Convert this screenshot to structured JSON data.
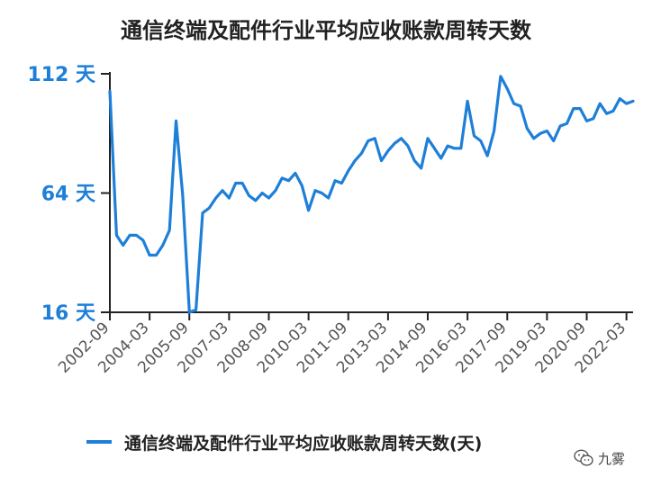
{
  "chart_data": {
    "type": "line",
    "title": "通信终端及配件行业平均应收账款周转天数",
    "xlabel": "",
    "ylabel": "",
    "ylim": [
      16,
      112
    ],
    "yticks": [
      {
        "value": 16,
        "label": "16 天"
      },
      {
        "value": 64,
        "label": "64 天"
      },
      {
        "value": 112,
        "label": "112 天"
      }
    ],
    "xtick_labels": [
      "2002-09",
      "2004-03",
      "2005-09",
      "2007-03",
      "2008-09",
      "2010-03",
      "2011-09",
      "2013-03",
      "2014-09",
      "2016-03",
      "2017-09",
      "2019-03",
      "2020-09",
      "2022-03"
    ],
    "x_range": [
      "2002-09",
      "2022-06"
    ],
    "grid": false,
    "legend_position": "bottom",
    "series": [
      {
        "name": "通信终端及配件行业平均应收账款周转天数(天)",
        "color": "#1e7fd8",
        "x": [
          "2002-09",
          "2002-12",
          "2003-03",
          "2003-06",
          "2003-09",
          "2003-12",
          "2004-03",
          "2004-06",
          "2004-09",
          "2004-12",
          "2005-03",
          "2005-06",
          "2005-09",
          "2005-12",
          "2006-03",
          "2006-06",
          "2006-09",
          "2006-12",
          "2007-03",
          "2007-06",
          "2007-09",
          "2007-12",
          "2008-03",
          "2008-06",
          "2008-09",
          "2008-12",
          "2009-03",
          "2009-06",
          "2009-09",
          "2009-12",
          "2010-03",
          "2010-06",
          "2010-09",
          "2010-12",
          "2011-03",
          "2011-06",
          "2011-09",
          "2011-12",
          "2012-03",
          "2012-06",
          "2012-09",
          "2012-12",
          "2013-03",
          "2013-06",
          "2013-09",
          "2013-12",
          "2014-03",
          "2014-06",
          "2014-09",
          "2014-12",
          "2015-03",
          "2015-06",
          "2015-09",
          "2015-12",
          "2016-03",
          "2016-06",
          "2016-09",
          "2016-12",
          "2017-03",
          "2017-06",
          "2017-09",
          "2017-12",
          "2018-03",
          "2018-06",
          "2018-09",
          "2018-12",
          "2019-03",
          "2019-06",
          "2019-09",
          "2019-12",
          "2020-03",
          "2020-06",
          "2020-09",
          "2020-12",
          "2021-03",
          "2021-06",
          "2021-09",
          "2021-12",
          "2022-03",
          "2022-06"
        ],
        "values": [
          105,
          47,
          43,
          47,
          47,
          45,
          39,
          39,
          43,
          49,
          93,
          63,
          16,
          17,
          56,
          58,
          62,
          65,
          62,
          68,
          68,
          63,
          61,
          64,
          62,
          65,
          70,
          69,
          72,
          67,
          57,
          65,
          64,
          62,
          69,
          68,
          73,
          77,
          80,
          85,
          86,
          77,
          81,
          84,
          86,
          83,
          77,
          74,
          86,
          82,
          78,
          83,
          82,
          82,
          101,
          87,
          85,
          79,
          89,
          111,
          106,
          100,
          99,
          90,
          86,
          88,
          89,
          85,
          91,
          92,
          98,
          98,
          93,
          94,
          100,
          96,
          97,
          102,
          100,
          101
        ]
      }
    ]
  },
  "legend": {
    "label": "通信终端及配件行业平均应收账款周转天数(天)"
  },
  "watermark": {
    "text": "九雾",
    "icon": "wechat-icon"
  }
}
